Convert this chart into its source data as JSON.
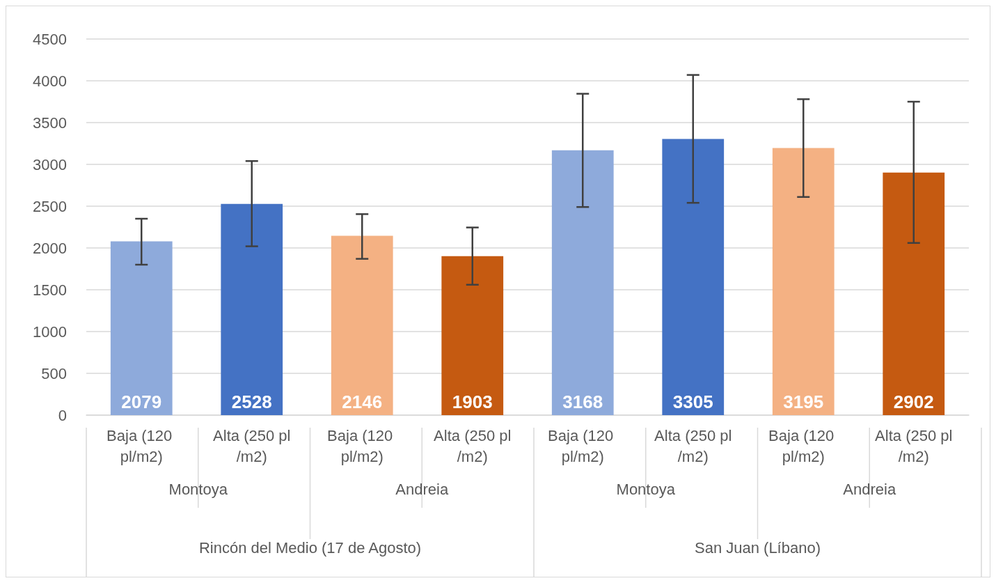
{
  "chart_data": {
    "type": "bar",
    "categories": [
      "Baja (120 pl/m2)",
      "Alta (250 pl/m2)",
      "Baja (120 pl/m2)",
      "Alta (250 pl/m2)",
      "Baja (120 pl/m2)",
      "Alta (250 pl/m2)",
      "Baja (120 pl/m2)",
      "Alta (250 pl/m2)"
    ],
    "values": [
      2079,
      2528,
      2146,
      1903,
      3168,
      3305,
      3195,
      2902
    ],
    "colors": [
      "#8eaadb",
      "#4472c4",
      "#f4b183",
      "#c55a11",
      "#8eaadb",
      "#4472c4",
      "#f4b183",
      "#c55a11"
    ],
    "errors": [
      [
        1800,
        2350
      ],
      [
        2020,
        3040
      ],
      [
        1870,
        2405
      ],
      [
        1560,
        2245
      ],
      [
        2490,
        3845
      ],
      [
        2540,
        4070
      ],
      [
        2610,
        3780
      ],
      [
        2060,
        3750
      ]
    ],
    "annotations": [
      "Montoya",
      "Andreia",
      "Montoya",
      "Andreia",
      "Rincón del Medio (17 de Agosto)",
      "San Juan (Líbano)"
    ],
    "ylim": [
      0,
      4500
    ],
    "yticks": [
      0,
      500,
      1000,
      1500,
      2000,
      2500,
      3000,
      3500,
      4000,
      4500
    ],
    "grid": "y",
    "data_labels": true
  }
}
